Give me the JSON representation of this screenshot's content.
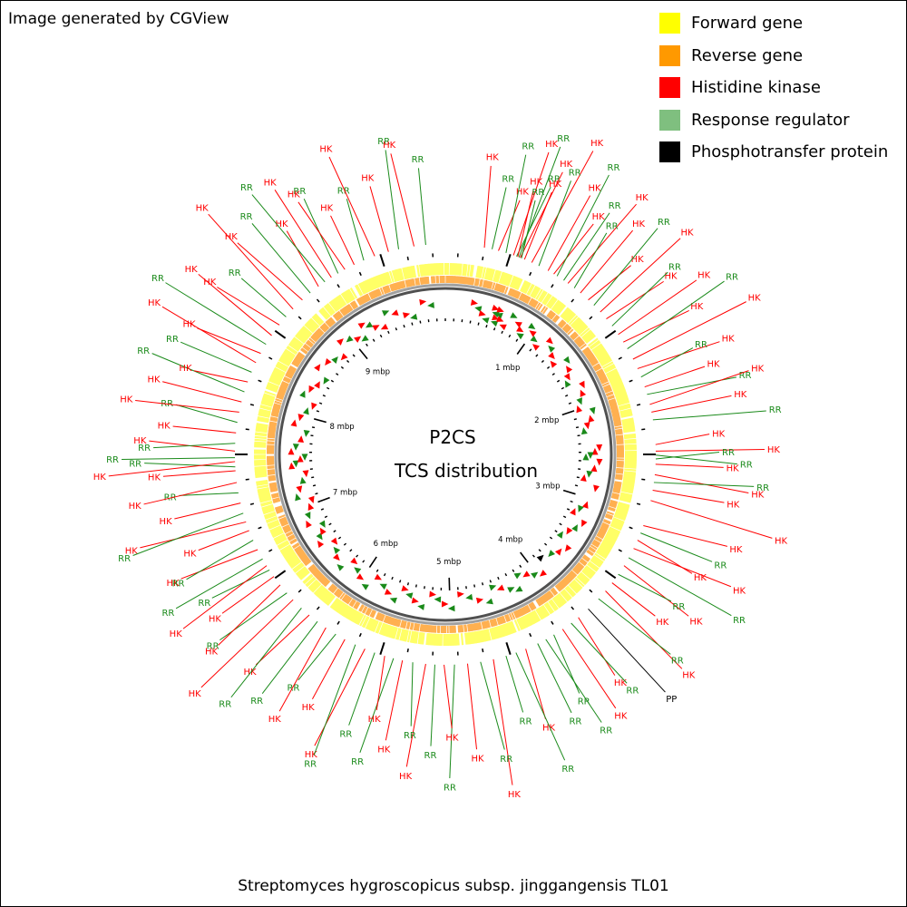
{
  "header": {
    "text": "Image generated by CGView"
  },
  "footer": {
    "organism": "Streptomyces hygroscopicus subsp. jinggangensis TL01"
  },
  "center": {
    "line1": "P2CS",
    "line2": "TCS distribution"
  },
  "legend": [
    {
      "label": "Forward gene",
      "color": "#ffff00"
    },
    {
      "label": "Reverse gene",
      "color": "#ff9900"
    },
    {
      "label": "Histidine kinase",
      "color": "#ff0000"
    },
    {
      "label": "Response regulator",
      "color": "#7fbf7f"
    },
    {
      "label": "Phosphotransfer protein",
      "color": "#000000"
    }
  ],
  "map": {
    "genome_size_mbp": 10.1,
    "axis_labels": [
      "1 mbp",
      "2 mbp",
      "3 mbp",
      "4 mbp",
      "5 mbp",
      "6 mbp",
      "7 mbp",
      "8 mbp",
      "9 mbp"
    ],
    "colors": {
      "forward": "#ffff66",
      "reverse": "#ffb050",
      "hk": "#ff0000",
      "rr": "#1a8a1a",
      "pp": "#000000",
      "backbone_outer": "#a0a0a0",
      "backbone_inner": "#505050"
    },
    "features": [
      {
        "type": "HK",
        "pos": 0.3
      },
      {
        "type": "RR",
        "pos": 0.36
      },
      {
        "type": "HK",
        "pos": 0.41
      },
      {
        "type": "RR",
        "pos": 0.47
      },
      {
        "type": "HK",
        "pos": 0.53
      },
      {
        "type": "RR",
        "pos": 0.555
      },
      {
        "type": "HK",
        "pos": 0.565
      },
      {
        "type": "RR",
        "pos": 0.575
      },
      {
        "type": "HK",
        "pos": 0.585
      },
      {
        "type": "RR",
        "pos": 0.595
      },
      {
        "type": "HK",
        "pos": 0.62
      },
      {
        "type": "HK",
        "pos": 0.68
      },
      {
        "type": "RR",
        "pos": 0.74
      },
      {
        "type": "HK",
        "pos": 0.82
      },
      {
        "type": "HK",
        "pos": 0.87
      },
      {
        "type": "RR",
        "pos": 0.9
      },
      {
        "type": "RR",
        "pos": 0.96
      },
      {
        "type": "HK",
        "pos": 1.0
      },
      {
        "type": "RR",
        "pos": 1.06
      },
      {
        "type": "HK",
        "pos": 1.12
      },
      {
        "type": "HK",
        "pos": 1.2
      },
      {
        "type": "RR",
        "pos": 1.26
      },
      {
        "type": "HK",
        "pos": 1.33
      },
      {
        "type": "HK",
        "pos": 1.4
      },
      {
        "type": "RR",
        "pos": 1.47
      },
      {
        "type": "HK",
        "pos": 1.55
      },
      {
        "type": "HK",
        "pos": 1.62
      },
      {
        "type": "RR",
        "pos": 1.68
      },
      {
        "type": "HK",
        "pos": 1.77
      },
      {
        "type": "HK",
        "pos": 1.85
      },
      {
        "type": "RR",
        "pos": 1.92
      },
      {
        "type": "HK",
        "pos": 2.0
      },
      {
        "type": "RR",
        "pos": 2.06
      },
      {
        "type": "HK",
        "pos": 2.14
      },
      {
        "type": "HK",
        "pos": 2.2
      },
      {
        "type": "RR",
        "pos": 2.26
      },
      {
        "type": "HK",
        "pos": 2.45
      },
      {
        "type": "HK",
        "pos": 2.5
      },
      {
        "type": "RR",
        "pos": 2.53
      },
      {
        "type": "RR",
        "pos": 2.56
      },
      {
        "type": "HK",
        "pos": 2.6
      },
      {
        "type": "HK",
        "pos": 2.68
      },
      {
        "type": "RR",
        "pos": 2.74
      },
      {
        "type": "HK",
        "pos": 2.8
      },
      {
        "type": "HK",
        "pos": 2.88
      },
      {
        "type": "HK",
        "pos": 3.08
      },
      {
        "type": "RR",
        "pos": 3.14
      },
      {
        "type": "HK",
        "pos": 3.2
      },
      {
        "type": "HK",
        "pos": 3.27
      },
      {
        "type": "RR",
        "pos": 3.35
      },
      {
        "type": "HK",
        "pos": 3.42
      },
      {
        "type": "RR",
        "pos": 3.5
      },
      {
        "type": "HK",
        "pos": 3.58
      },
      {
        "type": "HK",
        "pos": 3.66
      },
      {
        "type": "RR",
        "pos": 3.74
      },
      {
        "type": "PP",
        "pos": 3.85
      },
      {
        "type": "HK",
        "pos": 3.95
      },
      {
        "type": "RR",
        "pos": 4.02
      },
      {
        "type": "HK",
        "pos": 4.1
      },
      {
        "type": "RR",
        "pos": 4.18
      },
      {
        "type": "RR",
        "pos": 4.25
      },
      {
        "type": "RR",
        "pos": 4.32
      },
      {
        "type": "HK",
        "pos": 4.42
      },
      {
        "type": "RR",
        "pos": 4.5
      },
      {
        "type": "RR",
        "pos": 4.58
      },
      {
        "type": "HK",
        "pos": 4.68
      },
      {
        "type": "RR",
        "pos": 4.78
      },
      {
        "type": "HK",
        "pos": 4.88
      },
      {
        "type": "RR",
        "pos": 4.98
      },
      {
        "type": "HK",
        "pos": 5.06
      },
      {
        "type": "RR",
        "pos": 5.13
      },
      {
        "type": "HK",
        "pos": 5.2
      },
      {
        "type": "RR",
        "pos": 5.3
      },
      {
        "type": "HK",
        "pos": 5.38
      },
      {
        "type": "RR",
        "pos": 5.45
      },
      {
        "type": "HK",
        "pos": 5.52
      },
      {
        "type": "RR",
        "pos": 5.6
      },
      {
        "type": "HK",
        "pos": 5.68
      },
      {
        "type": "RR",
        "pos": 5.76
      },
      {
        "type": "HK",
        "pos": 5.85
      },
      {
        "type": "RR",
        "pos": 5.93
      },
      {
        "type": "HK",
        "pos": 6.02
      },
      {
        "type": "RR",
        "pos": 6.1
      },
      {
        "type": "HK",
        "pos": 6.18
      },
      {
        "type": "RR",
        "pos": 6.26
      },
      {
        "type": "HK",
        "pos": 6.35
      },
      {
        "type": "RR",
        "pos": 6.42
      },
      {
        "type": "HK",
        "pos": 6.5
      },
      {
        "type": "HK",
        "pos": 6.58
      },
      {
        "type": "RR",
        "pos": 6.64
      },
      {
        "type": "HK",
        "pos": 6.68
      },
      {
        "type": "RR",
        "pos": 6.74
      },
      {
        "type": "HK",
        "pos": 6.82
      },
      {
        "type": "RR",
        "pos": 6.9
      },
      {
        "type": "HK",
        "pos": 6.98
      },
      {
        "type": "HK",
        "pos": 7.05
      },
      {
        "type": "RR",
        "pos": 7.12
      },
      {
        "type": "HK",
        "pos": 7.2
      },
      {
        "type": "RR",
        "pos": 7.28
      },
      {
        "type": "HK",
        "pos": 7.36
      },
      {
        "type": "HK",
        "pos": 7.45
      },
      {
        "type": "RR",
        "pos": 7.48
      },
      {
        "type": "HK",
        "pos": 7.52
      },
      {
        "type": "RR",
        "pos": 7.55
      },
      {
        "type": "HK",
        "pos": 7.6
      },
      {
        "type": "RR",
        "pos": 7.66
      },
      {
        "type": "HK",
        "pos": 7.74
      },
      {
        "type": "RR",
        "pos": 7.82
      },
      {
        "type": "HK",
        "pos": 7.9
      },
      {
        "type": "HK",
        "pos": 7.98
      },
      {
        "type": "RR",
        "pos": 8.06
      },
      {
        "type": "HK",
        "pos": 8.14
      },
      {
        "type": "RR",
        "pos": 8.22
      },
      {
        "type": "HK",
        "pos": 8.3
      },
      {
        "type": "HK",
        "pos": 8.38
      },
      {
        "type": "RR",
        "pos": 8.46
      },
      {
        "type": "HK",
        "pos": 8.54
      },
      {
        "type": "HK",
        "pos": 8.64
      },
      {
        "type": "RR",
        "pos": 8.72
      },
      {
        "type": "HK",
        "pos": 8.8
      },
      {
        "type": "HK",
        "pos": 8.9
      },
      {
        "type": "RR",
        "pos": 8.98
      },
      {
        "type": "HK",
        "pos": 9.06
      },
      {
        "type": "RR",
        "pos": 9.12
      },
      {
        "type": "HK",
        "pos": 9.18
      },
      {
        "type": "RR",
        "pos": 9.24
      },
      {
        "type": "HK",
        "pos": 9.3
      },
      {
        "type": "HK",
        "pos": 9.38
      },
      {
        "type": "RR",
        "pos": 9.46
      },
      {
        "type": "HK",
        "pos": 9.55
      },
      {
        "type": "HK",
        "pos": 9.66
      },
      {
        "type": "RR",
        "pos": 9.74
      },
      {
        "type": "HK",
        "pos": 9.86
      },
      {
        "type": "RR",
        "pos": 9.95
      }
    ]
  }
}
